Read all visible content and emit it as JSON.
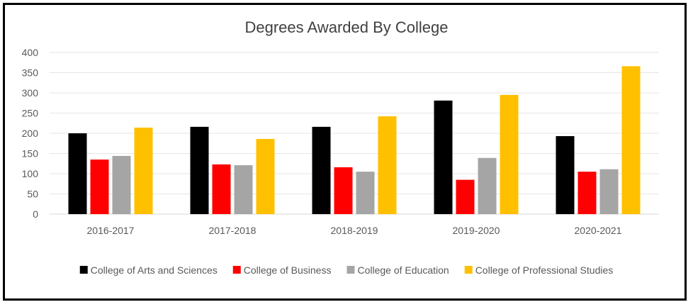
{
  "chart_data": {
    "type": "bar",
    "title": "Degrees Awarded By College",
    "xlabel": "",
    "ylabel": "",
    "categories": [
      "2016-2017",
      "2017-2018",
      "2018-2019",
      "2019-2020",
      "2020-2021"
    ],
    "ylim": [
      0,
      400
    ],
    "yticks": [
      "0",
      "50",
      "100",
      "150",
      "200",
      "250",
      "300",
      "350",
      "400"
    ],
    "grid": true,
    "legend_position": "bottom",
    "series": [
      {
        "name": "College of Arts and Sciences",
        "color": "#000000",
        "values": [
          200,
          216,
          216,
          281,
          193
        ]
      },
      {
        "name": "College of Business",
        "color": "#ff0000",
        "values": [
          135,
          123,
          116,
          85,
          105
        ]
      },
      {
        "name": "College of Education",
        "color": "#a5a5a5",
        "values": [
          144,
          121,
          105,
          139,
          111
        ]
      },
      {
        "name": "College of Professional Studies",
        "color": "#ffc000",
        "values": [
          214,
          186,
          242,
          295,
          366
        ]
      }
    ]
  }
}
